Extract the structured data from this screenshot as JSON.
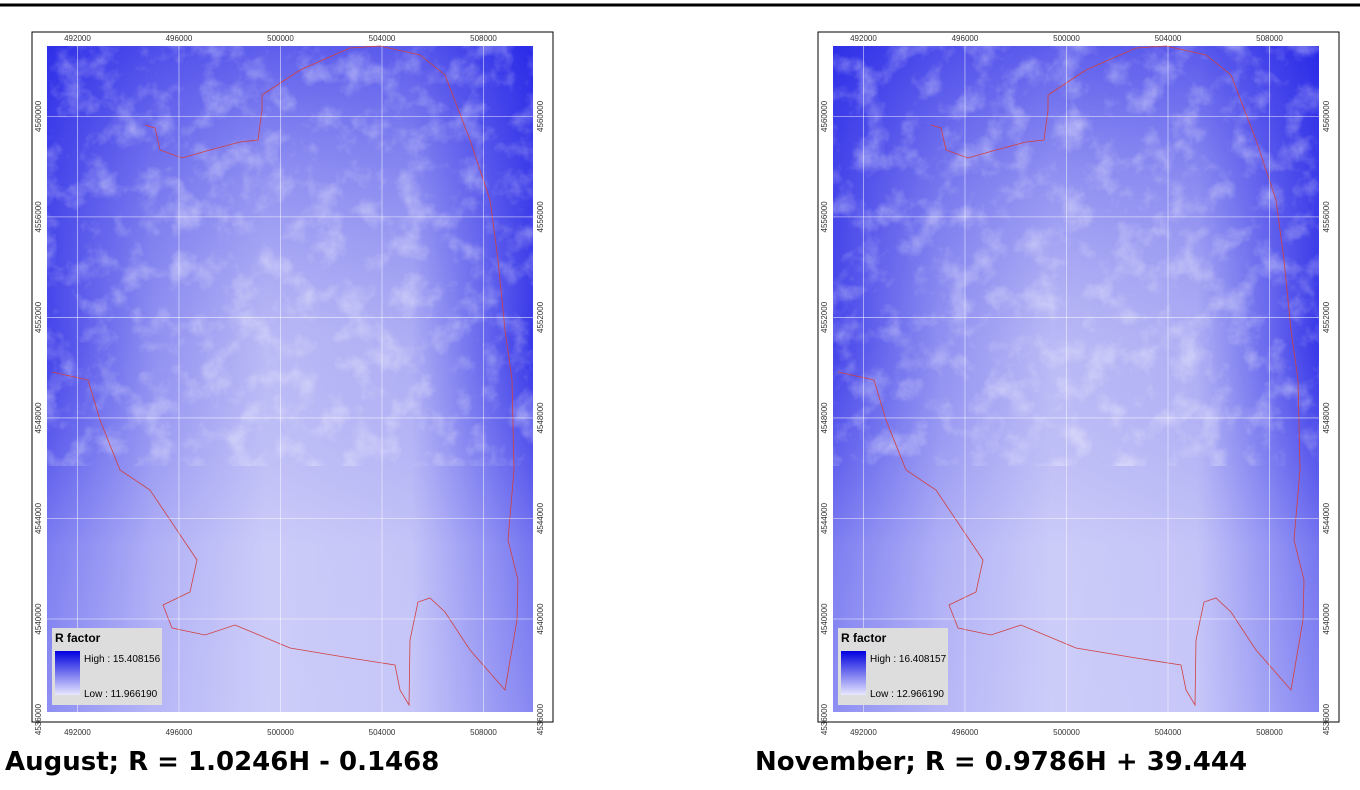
{
  "maps": [
    {
      "caption": "August; R = 1.0246H - 0.1468",
      "legend": {
        "title": "R factor",
        "high": "High : 15.408156",
        "low": "Low : 11.966190"
      },
      "xlim": [
        490800,
        509950
      ],
      "ylim": [
        4536300,
        4562800
      ],
      "xticks": [
        492000,
        496000,
        500000,
        504000,
        508000
      ],
      "yticks": [
        4560000,
        4556000,
        4552000,
        4548000,
        4544000,
        4540000,
        4536000
      ]
    },
    {
      "caption": "November; R = 0.9786H + 39.444",
      "legend": {
        "title": "R factor",
        "high": "High : 16.408157",
        "low": "Low : 12.966190"
      },
      "xlim": [
        490800,
        509950
      ],
      "ylim": [
        4536300,
        4562800
      ],
      "xticks": [
        492000,
        496000,
        500000,
        504000,
        508000
      ],
      "yticks": [
        4560000,
        4556000,
        4552000,
        4548000,
        4544000,
        4540000,
        4536000
      ]
    }
  ]
}
